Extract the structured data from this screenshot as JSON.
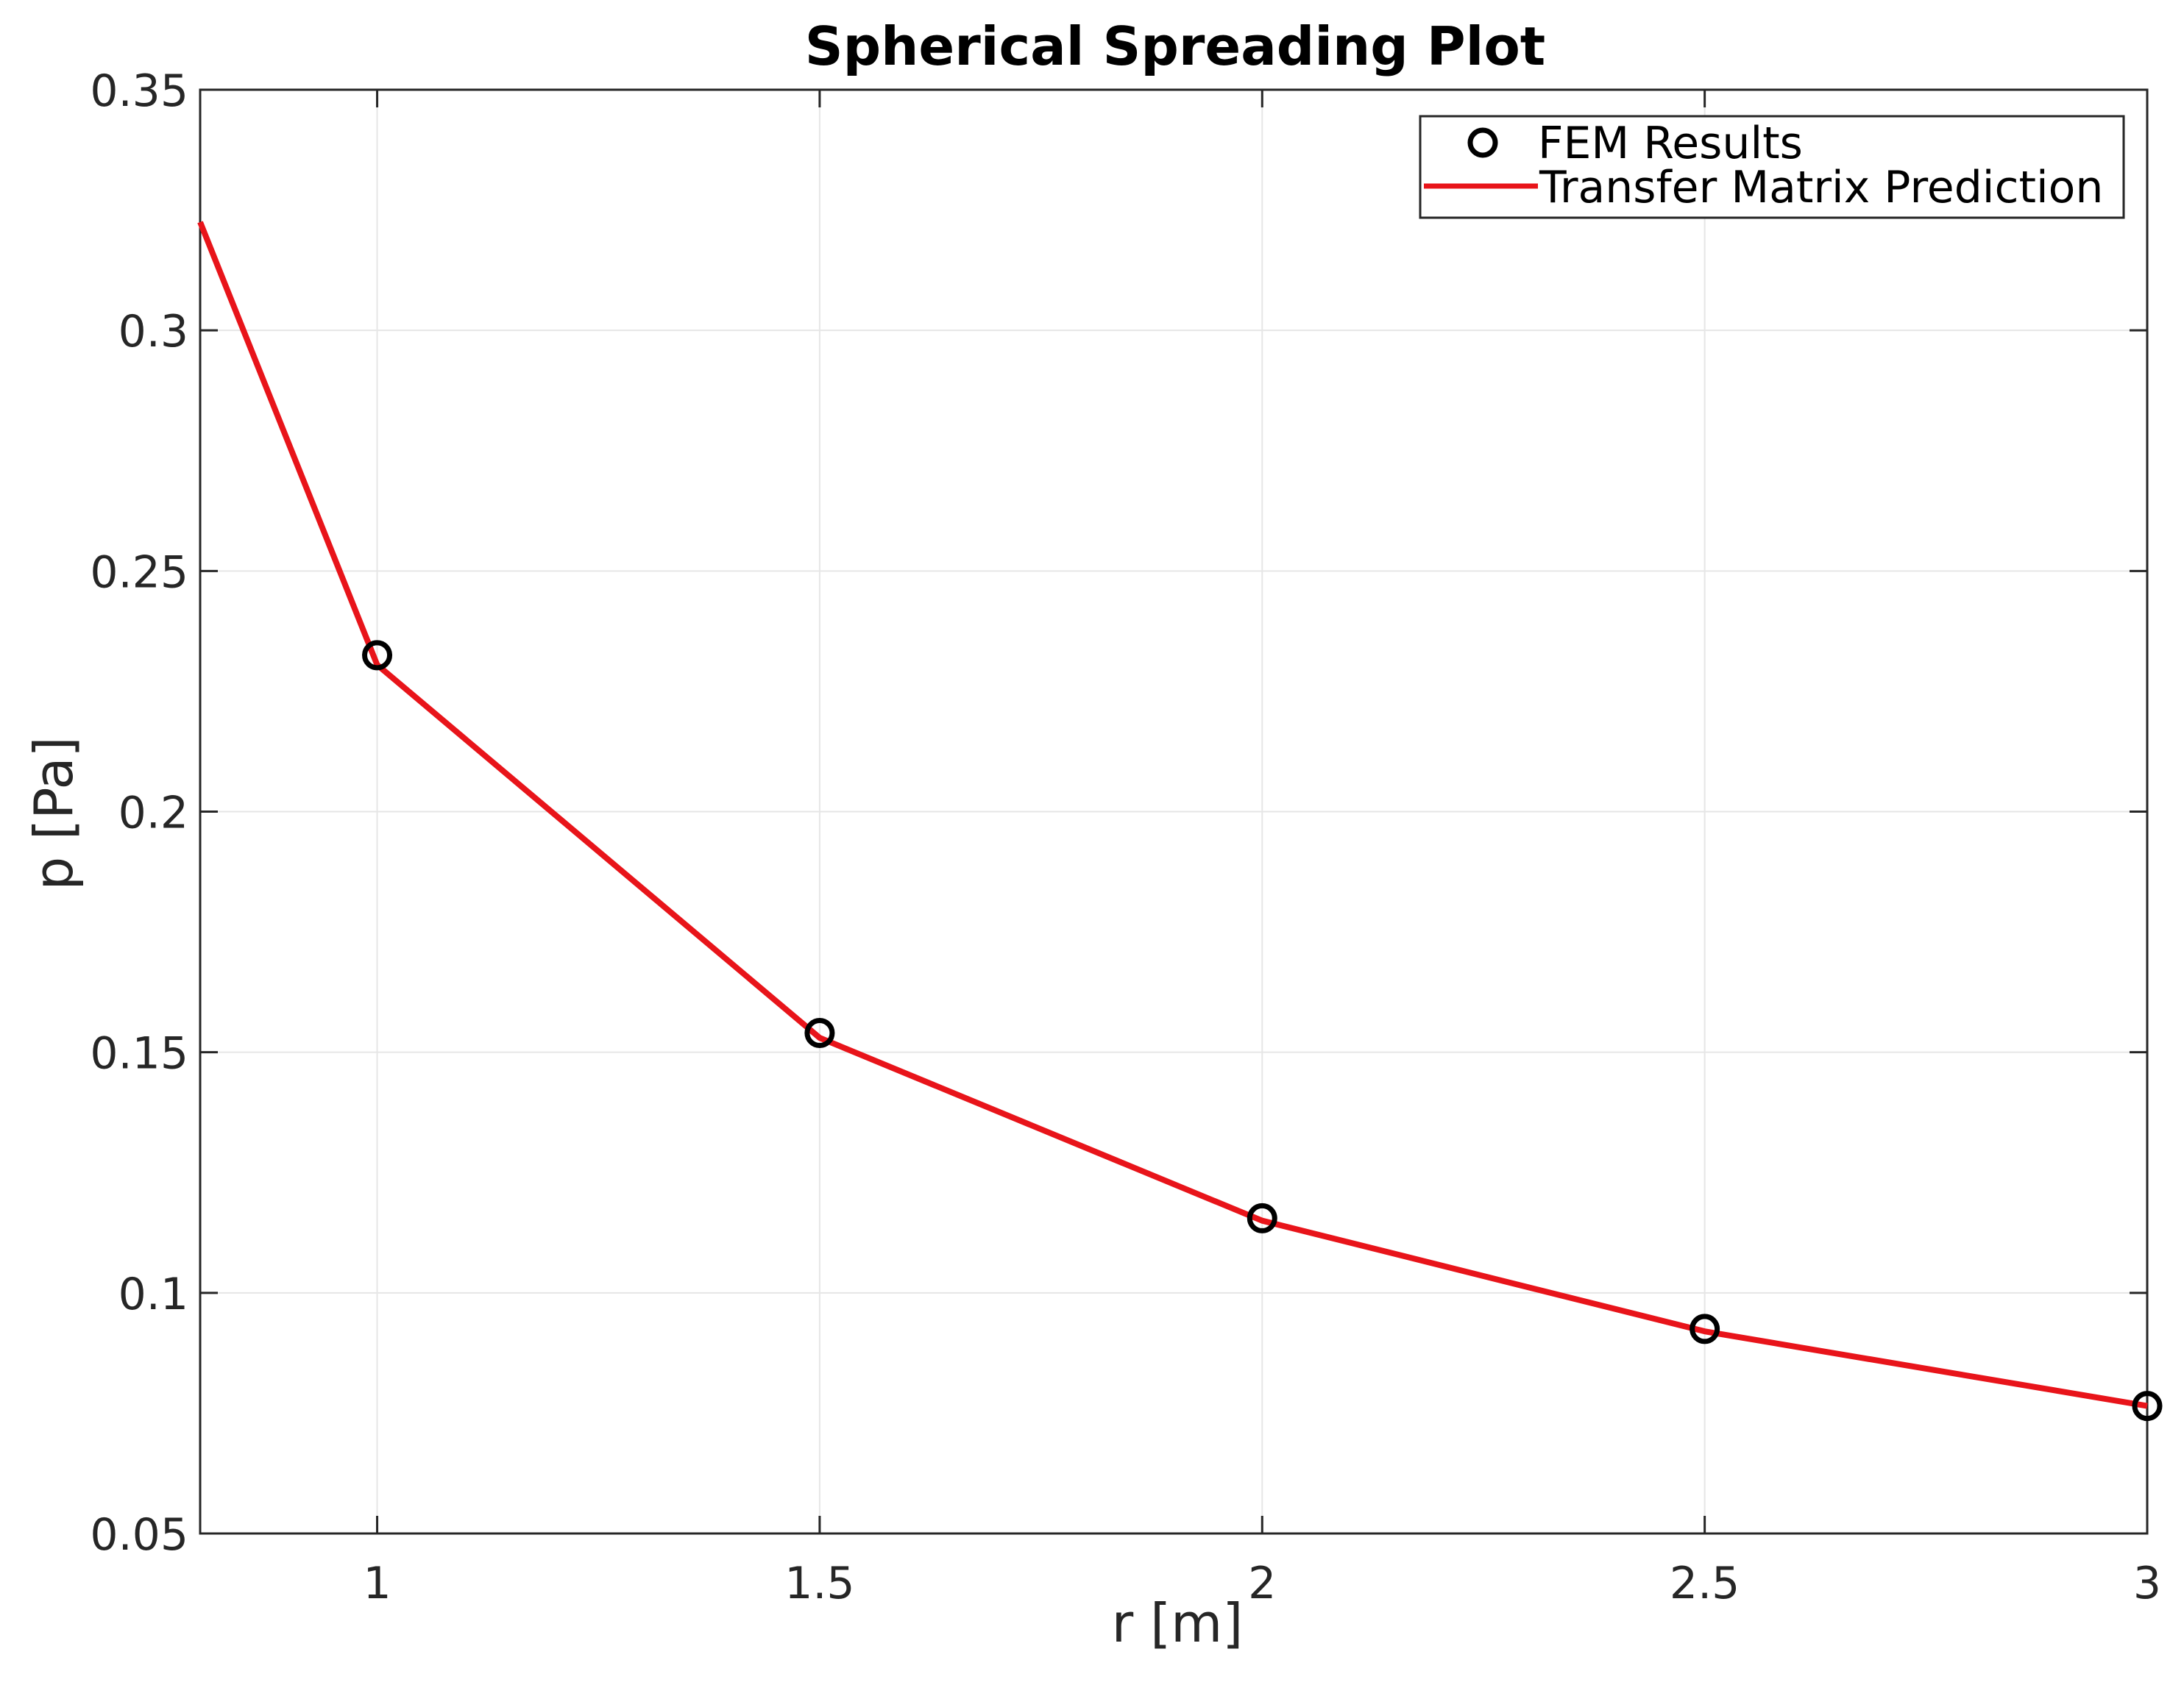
{
  "chart_data": {
    "type": "line",
    "title": "Spherical Spreading Plot",
    "xlabel": "r [m]",
    "ylabel": "p [Pa]",
    "xlim": [
      0.8,
      3
    ],
    "ylim": [
      0.05,
      0.35
    ],
    "grid": true,
    "legend_position": "top-right",
    "x_ticks": [
      1,
      1.5,
      2,
      2.5,
      3
    ],
    "x_tick_labels": [
      "1",
      "1.5",
      "2",
      "2.5",
      "3"
    ],
    "y_ticks": [
      0.05,
      0.1,
      0.15,
      0.2,
      0.25,
      0.3,
      0.35
    ],
    "y_tick_labels": [
      "0.05",
      "0.1",
      "0.15",
      "0.2",
      "0.25",
      "0.3",
      "0.35"
    ],
    "series": [
      {
        "name": "FEM Results",
        "kind": "marker",
        "marker": "circle",
        "color": "#000000",
        "x": [
          1,
          1.5,
          2,
          2.5,
          3
        ],
        "y": [
          0.2325,
          0.154,
          0.1155,
          0.0925,
          0.0765
        ]
      },
      {
        "name": "Transfer Matrix Prediction",
        "kind": "line",
        "color": "#e8141a",
        "x": [
          0.8,
          1,
          1.5,
          2,
          2.5,
          3
        ],
        "y": [
          0.3225,
          0.2305,
          0.153,
          0.115,
          0.092,
          0.0765
        ]
      }
    ]
  }
}
